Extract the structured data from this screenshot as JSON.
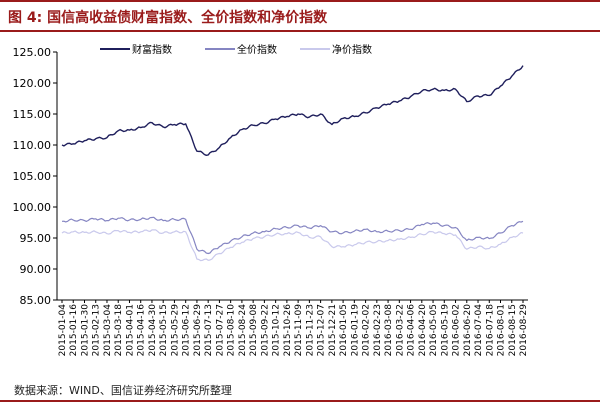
{
  "title": "图 4:  国信高收益债财富指数、全价指数和净价指数",
  "source": "数据来源：WIND、国信证券经济研究所整理",
  "chart_data": {
    "type": "line",
    "title": "",
    "xlabel": "",
    "ylabel": "",
    "ylim": [
      85,
      125
    ],
    "yticks": [
      "85.00",
      "90.00",
      "95.00",
      "100.00",
      "105.00",
      "110.00",
      "115.00",
      "120.00",
      "125.00"
    ],
    "grid": false,
    "legend_position": "top",
    "x": [
      "2015-01-04",
      "2015-01-16",
      "2015-01-30",
      "2015-02-13",
      "2015-03-04",
      "2015-03-18",
      "2015-04-01",
      "2015-04-16",
      "2015-04-30",
      "2015-05-15",
      "2015-05-29",
      "2015-06-12",
      "2015-06-29",
      "2015-07-13",
      "2015-07-27",
      "2015-08-10",
      "2015-08-24",
      "2015-09-08",
      "2015-09-22",
      "2015-10-12",
      "2015-10-26",
      "2015-11-09",
      "2015-11-23",
      "2015-12-07",
      "2015-12-21",
      "2016-01-05",
      "2016-01-19",
      "2016-02-02",
      "2016-02-23",
      "2016-03-08",
      "2016-03-22",
      "2016-04-06",
      "2016-04-20",
      "2016-05-05",
      "2016-05-19",
      "2016-06-02",
      "2016-06-20",
      "2016-07-04",
      "2016-07-18",
      "2016-08-01",
      "2016-08-15",
      "2016-08-29"
    ],
    "series": [
      {
        "name": "财富指数",
        "color": "#1f1f5c",
        "values": [
          110.0,
          110.2,
          110.7,
          111.0,
          111.2,
          112.3,
          112.4,
          112.8,
          113.6,
          112.9,
          113.3,
          113.4,
          109.0,
          108.4,
          109.6,
          111.2,
          112.5,
          113.2,
          113.5,
          114.2,
          114.6,
          115.0,
          114.5,
          115.0,
          113.3,
          114.3,
          114.6,
          115.2,
          116.0,
          116.6,
          117.1,
          117.8,
          118.7,
          119.0,
          118.8,
          119.0,
          117.0,
          117.9,
          118.0,
          119.5,
          121.1,
          122.8
        ]
      },
      {
        "name": "全价指数",
        "color": "#8585c2",
        "values": [
          97.7,
          97.9,
          97.8,
          98.1,
          97.8,
          98.2,
          97.9,
          98.0,
          98.3,
          97.8,
          98.0,
          98.0,
          93.2,
          92.5,
          93.6,
          94.5,
          95.2,
          95.8,
          96.0,
          96.5,
          96.7,
          97.0,
          96.6,
          97.0,
          96.0,
          95.8,
          96.1,
          96.4,
          96.0,
          96.1,
          96.2,
          96.4,
          97.2,
          97.4,
          97.0,
          96.7,
          94.6,
          95.1,
          94.9,
          95.8,
          97.0,
          97.7
        ]
      },
      {
        "name": "净价指数",
        "color": "#c9c9ec",
        "values": [
          95.8,
          96.0,
          95.9,
          96.0,
          95.7,
          96.2,
          95.9,
          96.0,
          96.3,
          95.8,
          96.0,
          96.0,
          91.6,
          91.4,
          92.5,
          93.5,
          94.3,
          94.9,
          95.2,
          95.6,
          95.7,
          95.9,
          95.1,
          95.2,
          93.6,
          93.6,
          93.9,
          94.3,
          94.4,
          94.6,
          94.8,
          95.1,
          95.6,
          96.0,
          95.7,
          95.5,
          93.2,
          93.6,
          93.3,
          94.0,
          95.1,
          95.8
        ]
      }
    ]
  }
}
